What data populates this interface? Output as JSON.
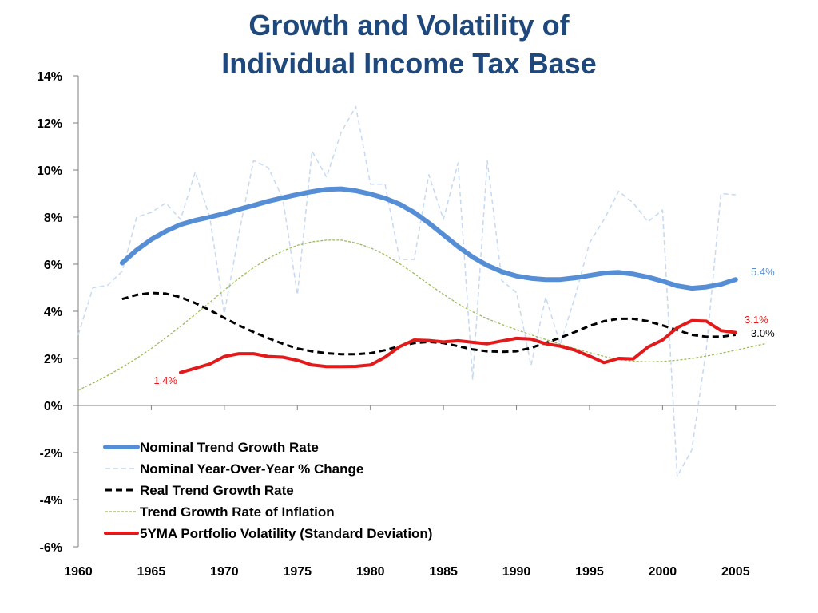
{
  "chart_data": {
    "type": "line",
    "title": [
      "Growth and Volatility of",
      "Individual Income Tax Base"
    ],
    "xlabel": "",
    "ylabel": "",
    "xlim": [
      1960,
      2007.8
    ],
    "ylim": [
      -6,
      14
    ],
    "x_ticks": [
      1960,
      1965,
      1970,
      1975,
      1980,
      1985,
      1990,
      1995,
      2000,
      2005
    ],
    "y_ticks": [
      -6,
      -4,
      -2,
      0,
      2,
      4,
      6,
      8,
      10,
      12,
      14
    ],
    "y_tick_labels": [
      "-6%",
      "-4%",
      "-2%",
      "0%",
      "2%",
      "4%",
      "6%",
      "8%",
      "10%",
      "12%",
      "14%"
    ],
    "grid": false,
    "legend_position": "lower-left",
    "series": [
      {
        "name": "Nominal Trend Growth Rate",
        "color": "#558ed5",
        "style": "solid-thick",
        "x": [
          1963,
          1964,
          1965,
          1966,
          1967,
          1968,
          1969,
          1970,
          1971,
          1972,
          1973,
          1974,
          1975,
          1976,
          1977,
          1978,
          1979,
          1980,
          1981,
          1982,
          1983,
          1984,
          1985,
          1986,
          1987,
          1988,
          1989,
          1990,
          1991,
          1992,
          1993,
          1994,
          1995,
          1996,
          1997,
          1998,
          1999,
          2000,
          2001,
          2002,
          2003,
          2004,
          2005
        ],
        "y": [
          6.05,
          6.6,
          7.05,
          7.4,
          7.68,
          7.86,
          8.0,
          8.15,
          8.33,
          8.5,
          8.67,
          8.82,
          8.96,
          9.08,
          9.18,
          9.2,
          9.12,
          8.98,
          8.8,
          8.55,
          8.2,
          7.75,
          7.25,
          6.75,
          6.3,
          5.95,
          5.68,
          5.5,
          5.4,
          5.35,
          5.35,
          5.42,
          5.52,
          5.62,
          5.65,
          5.58,
          5.45,
          5.28,
          5.08,
          4.98,
          5.03,
          5.15,
          5.35
        ]
      },
      {
        "name": "Nominal Year-Over-Year % Change",
        "color": "#c6d9f1",
        "style": "dashed",
        "x": [
          1960,
          1961,
          1962,
          1963,
          1964,
          1965,
          1966,
          1967,
          1968,
          1969,
          1970,
          1971,
          1972,
          1973,
          1974,
          1975,
          1976,
          1977,
          1978,
          1979,
          1980,
          1981,
          1982,
          1983,
          1984,
          1985,
          1986,
          1987,
          1988,
          1989,
          1990,
          1991,
          1992,
          1993,
          1994,
          1995,
          1996,
          1997,
          1998,
          1999,
          2000,
          2001,
          2002,
          2003,
          2004,
          2005
        ],
        "y": [
          3.0,
          5.0,
          5.1,
          5.7,
          8.0,
          8.2,
          8.6,
          7.9,
          9.9,
          8.0,
          3.9,
          7.3,
          10.4,
          10.1,
          8.8,
          4.7,
          10.8,
          9.7,
          11.6,
          12.7,
          9.4,
          9.4,
          6.2,
          6.2,
          9.8,
          7.9,
          10.3,
          1.1,
          10.4,
          5.3,
          4.8,
          1.7,
          4.6,
          2.6,
          4.6,
          6.9,
          7.9,
          9.1,
          8.6,
          7.8,
          8.3,
          -3.0,
          -1.9,
          2.4,
          9.0,
          8.95
        ]
      },
      {
        "name": "Real Trend Growth Rate",
        "color": "#000000",
        "style": "dashed-bold",
        "x": [
          1963,
          1964,
          1965,
          1966,
          1967,
          1968,
          1969,
          1970,
          1971,
          1972,
          1973,
          1974,
          1975,
          1976,
          1977,
          1978,
          1979,
          1980,
          1981,
          1982,
          1983,
          1984,
          1985,
          1986,
          1987,
          1988,
          1989,
          1990,
          1991,
          1992,
          1993,
          1994,
          1995,
          1996,
          1997,
          1998,
          1999,
          2000,
          2001,
          2002,
          2003,
          2004,
          2005
        ],
        "y": [
          4.52,
          4.7,
          4.78,
          4.75,
          4.6,
          4.35,
          4.05,
          3.72,
          3.4,
          3.12,
          2.86,
          2.62,
          2.42,
          2.3,
          2.22,
          2.18,
          2.18,
          2.22,
          2.35,
          2.52,
          2.65,
          2.7,
          2.65,
          2.52,
          2.38,
          2.3,
          2.28,
          2.3,
          2.45,
          2.65,
          2.88,
          3.12,
          3.38,
          3.58,
          3.68,
          3.68,
          3.58,
          3.4,
          3.2,
          3.0,
          2.92,
          2.92,
          3.0
        ]
      },
      {
        "name": "Trend Growth Rate of Inflation",
        "color": "#9bbb59",
        "style": "dotted",
        "x": [
          1960,
          1961,
          1962,
          1963,
          1964,
          1965,
          1966,
          1967,
          1968,
          1969,
          1970,
          1971,
          1972,
          1973,
          1974,
          1975,
          1976,
          1977,
          1978,
          1979,
          1980,
          1981,
          1982,
          1983,
          1984,
          1985,
          1986,
          1987,
          1988,
          1989,
          1990,
          1991,
          1992,
          1993,
          1994,
          1995,
          1996,
          1997,
          1998,
          1999,
          2000,
          2001,
          2002,
          2003,
          2004,
          2005,
          2006,
          2007
        ],
        "y": [
          0.65,
          0.95,
          1.27,
          1.62,
          2.0,
          2.42,
          2.88,
          3.36,
          3.86,
          4.38,
          4.9,
          5.4,
          5.85,
          6.24,
          6.56,
          6.8,
          6.95,
          7.02,
          7.02,
          6.9,
          6.7,
          6.4,
          6.02,
          5.6,
          5.15,
          4.72,
          4.32,
          3.98,
          3.68,
          3.44,
          3.22,
          3.0,
          2.8,
          2.6,
          2.42,
          2.25,
          2.08,
          1.95,
          1.88,
          1.85,
          1.87,
          1.92,
          2.0,
          2.1,
          2.22,
          2.35,
          2.48,
          2.62
        ]
      },
      {
        "name": "5YMA Portfolio Volatility (Standard Deviation)",
        "color": "#e31a1c",
        "style": "solid",
        "x": [
          1967,
          1968,
          1969,
          1970,
          1971,
          1972,
          1973,
          1974,
          1975,
          1976,
          1977,
          1978,
          1979,
          1980,
          1981,
          1982,
          1983,
          1984,
          1985,
          1986,
          1987,
          1988,
          1989,
          1990,
          1991,
          1992,
          1993,
          1994,
          1995,
          1996,
          1997,
          1998,
          1999,
          2000,
          2001,
          2002,
          2003,
          2004,
          2005
        ],
        "y": [
          1.4,
          1.58,
          1.76,
          2.08,
          2.2,
          2.2,
          2.08,
          2.05,
          1.92,
          1.72,
          1.65,
          1.65,
          1.66,
          1.72,
          2.05,
          2.5,
          2.78,
          2.76,
          2.7,
          2.75,
          2.68,
          2.62,
          2.74,
          2.85,
          2.82,
          2.62,
          2.52,
          2.35,
          2.1,
          1.82,
          2.0,
          1.98,
          2.48,
          2.78,
          3.3,
          3.6,
          3.58,
          3.18,
          3.1
        ]
      }
    ],
    "annotations": [
      {
        "text": "5.4%",
        "color": "#558ed5"
      },
      {
        "text": "3.1%",
        "color": "#e31a1c"
      },
      {
        "text": "3.0%",
        "color": "#000000"
      },
      {
        "text": "1.4%",
        "color": "#e31a1c"
      }
    ]
  }
}
